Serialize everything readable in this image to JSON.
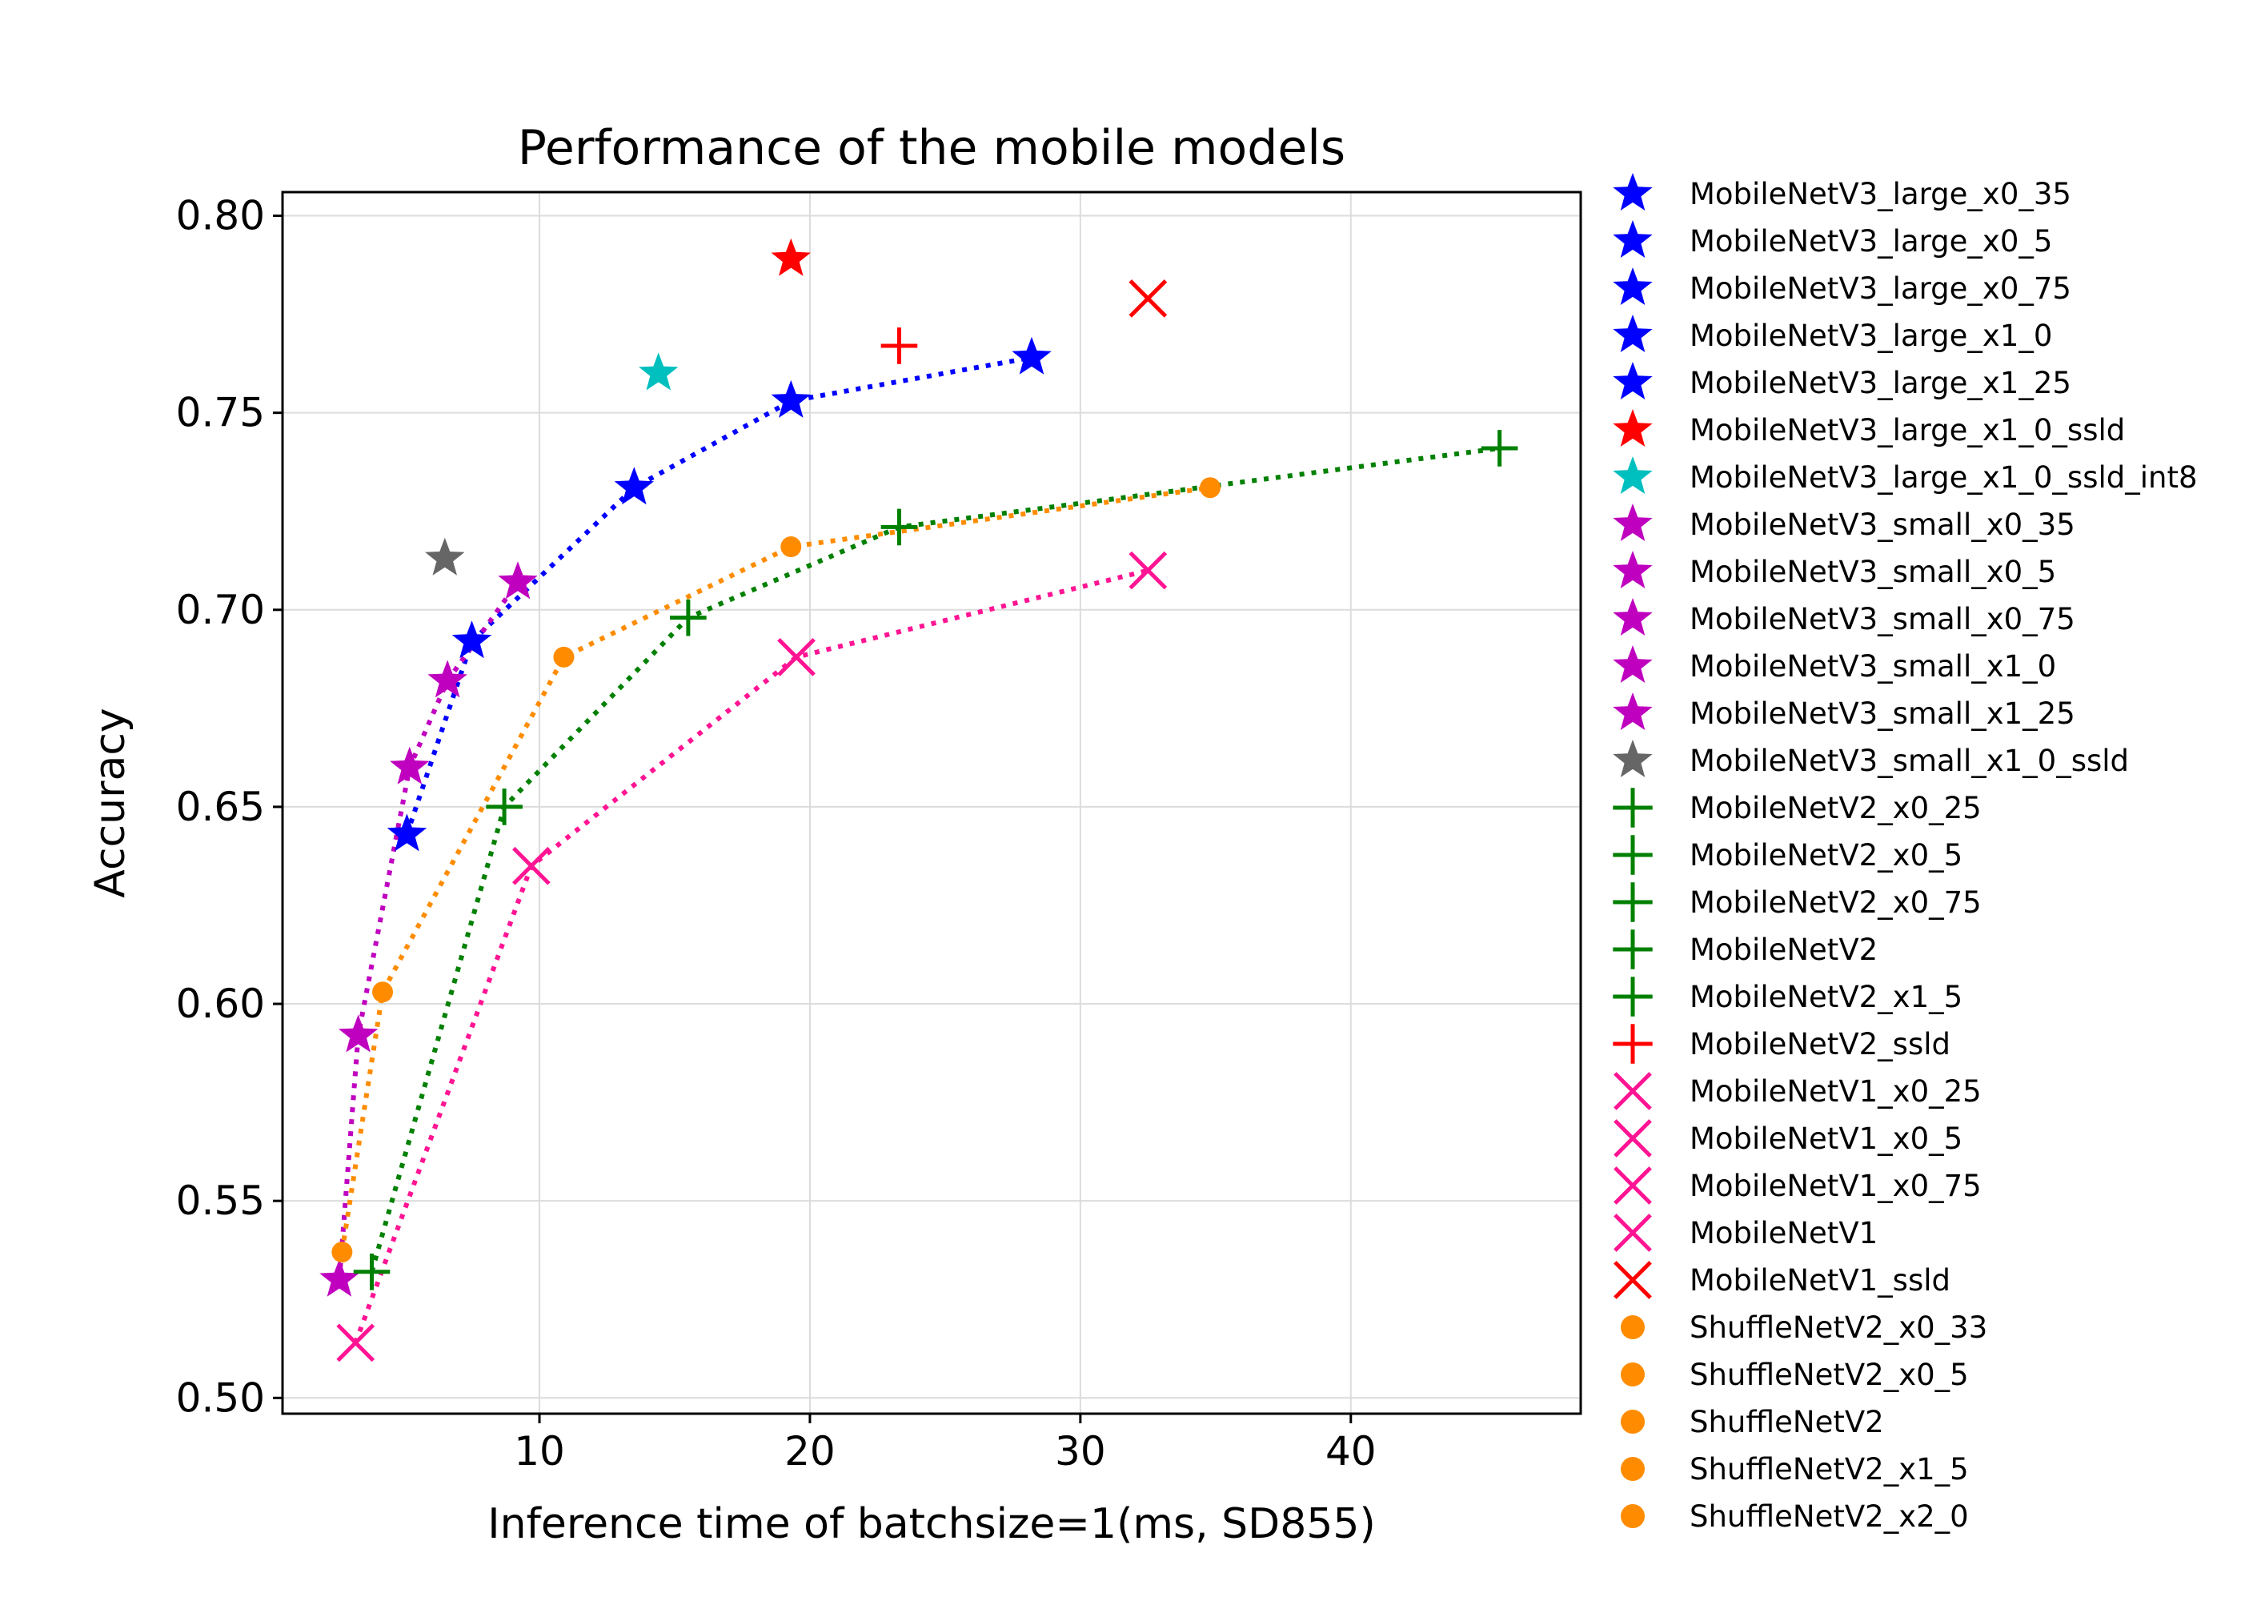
{
  "chart_data": {
    "type": "scatter",
    "title": "Performance of the mobile models",
    "xlabel": "Inference time of batchsize=1(ms, SD855)",
    "ylabel": "Accuracy",
    "xlim": [
      0.5,
      48.5
    ],
    "ylim": [
      0.496,
      0.806
    ],
    "xticks": [
      10,
      20,
      30,
      40
    ],
    "yticks": [
      0.5,
      0.55,
      0.6,
      0.65,
      0.7,
      0.75,
      0.8
    ],
    "ytick_labels": [
      "0.50",
      "0.55",
      "0.60",
      "0.65",
      "0.70",
      "0.75",
      "0.80"
    ],
    "grid": true,
    "legend_position": "outside-right",
    "groups": [
      {
        "name": "MobileNetV3_large",
        "marker": "star",
        "color": "#0000ff",
        "line": true,
        "points": [
          {
            "label": "MobileNetV3_large_x0_35",
            "x": 5.1,
            "y": 0.643
          },
          {
            "label": "MobileNetV3_large_x0_5",
            "x": 7.5,
            "y": 0.692
          },
          {
            "label": "MobileNetV3_large_x0_75",
            "x": 13.5,
            "y": 0.731
          },
          {
            "label": "MobileNetV3_large_x1_0",
            "x": 19.3,
            "y": 0.753
          },
          {
            "label": "MobileNetV3_large_x1_25",
            "x": 28.2,
            "y": 0.764
          }
        ]
      },
      {
        "name": "MobileNetV3_large_x1_0_ssld",
        "marker": "star",
        "color": "#ff0000",
        "line": false,
        "points": [
          {
            "label": "MobileNetV3_large_x1_0_ssld",
            "x": 19.3,
            "y": 0.789
          }
        ]
      },
      {
        "name": "MobileNetV3_large_x1_0_ssld_int8",
        "marker": "star",
        "color": "#00bfbf",
        "line": false,
        "points": [
          {
            "label": "MobileNetV3_large_x1_0_ssld_int8",
            "x": 14.4,
            "y": 0.76
          }
        ]
      },
      {
        "name": "MobileNetV3_small",
        "marker": "star",
        "color": "#bf00bf",
        "line": true,
        "points": [
          {
            "label": "MobileNetV3_small_x0_35",
            "x": 2.6,
            "y": 0.53
          },
          {
            "label": "MobileNetV3_small_x0_5",
            "x": 3.3,
            "y": 0.592
          },
          {
            "label": "MobileNetV3_small_x0_75",
            "x": 5.2,
            "y": 0.66
          },
          {
            "label": "MobileNetV3_small_x1_0",
            "x": 6.6,
            "y": 0.682
          },
          {
            "label": "MobileNetV3_small_x1_25",
            "x": 9.2,
            "y": 0.707
          }
        ]
      },
      {
        "name": "MobileNetV3_small_x1_0_ssld",
        "marker": "star",
        "color": "#666666",
        "line": false,
        "points": [
          {
            "label": "MobileNetV3_small_x1_0_ssld",
            "x": 6.5,
            "y": 0.713
          }
        ]
      },
      {
        "name": "MobileNetV2",
        "marker": "plus",
        "color": "#008000",
        "line": true,
        "points": [
          {
            "label": "MobileNetV2_x0_25",
            "x": 3.8,
            "y": 0.532
          },
          {
            "label": "MobileNetV2_x0_5",
            "x": 8.7,
            "y": 0.65
          },
          {
            "label": "MobileNetV2_x0_75",
            "x": 15.5,
            "y": 0.698
          },
          {
            "label": "MobileNetV2",
            "x": 23.3,
            "y": 0.721
          },
          {
            "label": "MobileNetV2_x1_5",
            "x": 45.5,
            "y": 0.741
          }
        ]
      },
      {
        "name": "MobileNetV2_ssld",
        "marker": "plus",
        "color": "#ff0000",
        "line": false,
        "points": [
          {
            "label": "MobileNetV2_ssld",
            "x": 23.3,
            "y": 0.767
          }
        ]
      },
      {
        "name": "MobileNetV1",
        "marker": "x",
        "color": "#ff1493",
        "line": true,
        "points": [
          {
            "label": "MobileNetV1_x0_25",
            "x": 3.2,
            "y": 0.514
          },
          {
            "label": "MobileNetV1_x0_5",
            "x": 9.7,
            "y": 0.635
          },
          {
            "label": "MobileNetV1_x0_75",
            "x": 19.5,
            "y": 0.688
          },
          {
            "label": "MobileNetV1",
            "x": 32.5,
            "y": 0.71
          }
        ]
      },
      {
        "name": "MobileNetV1_ssld",
        "marker": "x",
        "color": "#ff0000",
        "line": false,
        "points": [
          {
            "label": "MobileNetV1_ssld",
            "x": 32.5,
            "y": 0.779
          }
        ]
      },
      {
        "name": "ShuffleNetV2",
        "marker": "circle",
        "color": "#ff8c00",
        "line": true,
        "points": [
          {
            "label": "ShuffleNetV2_x0_33",
            "x": 2.7,
            "y": 0.537
          },
          {
            "label": "ShuffleNetV2_x0_5",
            "x": 4.2,
            "y": 0.603
          },
          {
            "label": "ShuffleNetV2",
            "x": 10.9,
            "y": 0.688
          },
          {
            "label": "ShuffleNetV2_x1_5",
            "x": 19.3,
            "y": 0.716
          },
          {
            "label": "ShuffleNetV2_x2_0",
            "x": 34.8,
            "y": 0.731
          }
        ]
      }
    ],
    "legend": [
      {
        "label": "MobileNetV3_large_x0_35",
        "marker": "star",
        "color": "#0000ff"
      },
      {
        "label": "MobileNetV3_large_x0_5",
        "marker": "star",
        "color": "#0000ff"
      },
      {
        "label": "MobileNetV3_large_x0_75",
        "marker": "star",
        "color": "#0000ff"
      },
      {
        "label": "MobileNetV3_large_x1_0",
        "marker": "star",
        "color": "#0000ff"
      },
      {
        "label": "MobileNetV3_large_x1_25",
        "marker": "star",
        "color": "#0000ff"
      },
      {
        "label": "MobileNetV3_large_x1_0_ssld",
        "marker": "star",
        "color": "#ff0000"
      },
      {
        "label": "MobileNetV3_large_x1_0_ssld_int8",
        "marker": "star",
        "color": "#00bfbf"
      },
      {
        "label": "MobileNetV3_small_x0_35",
        "marker": "star",
        "color": "#bf00bf"
      },
      {
        "label": "MobileNetV3_small_x0_5",
        "marker": "star",
        "color": "#bf00bf"
      },
      {
        "label": "MobileNetV3_small_x0_75",
        "marker": "star",
        "color": "#bf00bf"
      },
      {
        "label": "MobileNetV3_small_x1_0",
        "marker": "star",
        "color": "#bf00bf"
      },
      {
        "label": "MobileNetV3_small_x1_25",
        "marker": "star",
        "color": "#bf00bf"
      },
      {
        "label": "MobileNetV3_small_x1_0_ssld",
        "marker": "star",
        "color": "#666666"
      },
      {
        "label": "MobileNetV2_x0_25",
        "marker": "plus",
        "color": "#008000"
      },
      {
        "label": "MobileNetV2_x0_5",
        "marker": "plus",
        "color": "#008000"
      },
      {
        "label": "MobileNetV2_x0_75",
        "marker": "plus",
        "color": "#008000"
      },
      {
        "label": "MobileNetV2",
        "marker": "plus",
        "color": "#008000"
      },
      {
        "label": "MobileNetV2_x1_5",
        "marker": "plus",
        "color": "#008000"
      },
      {
        "label": "MobileNetV2_ssld",
        "marker": "plus",
        "color": "#ff0000"
      },
      {
        "label": "MobileNetV1_x0_25",
        "marker": "x",
        "color": "#ff1493"
      },
      {
        "label": "MobileNetV1_x0_5",
        "marker": "x",
        "color": "#ff1493"
      },
      {
        "label": "MobileNetV1_x0_75",
        "marker": "x",
        "color": "#ff1493"
      },
      {
        "label": "MobileNetV1",
        "marker": "x",
        "color": "#ff1493"
      },
      {
        "label": "MobileNetV1_ssld",
        "marker": "x",
        "color": "#ff0000"
      },
      {
        "label": "ShuffleNetV2_x0_33",
        "marker": "circle",
        "color": "#ff8c00"
      },
      {
        "label": "ShuffleNetV2_x0_5",
        "marker": "circle",
        "color": "#ff8c00"
      },
      {
        "label": "ShuffleNetV2",
        "marker": "circle",
        "color": "#ff8c00"
      },
      {
        "label": "ShuffleNetV2_x1_5",
        "marker": "circle",
        "color": "#ff8c00"
      },
      {
        "label": "ShuffleNetV2_x2_0",
        "marker": "circle",
        "color": "#ff8c00"
      }
    ]
  }
}
